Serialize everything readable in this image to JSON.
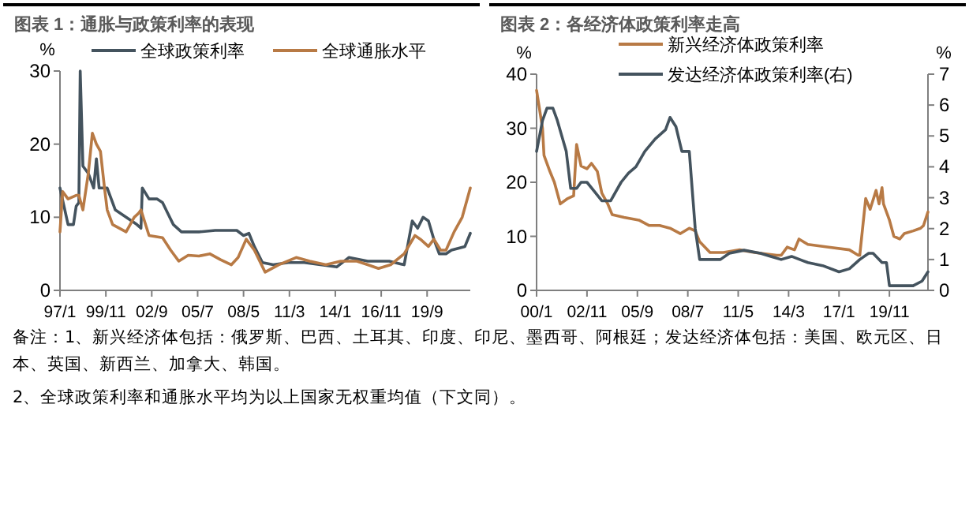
{
  "chart_data": [
    {
      "type": "line",
      "title": "图表 1：通胀与政策利率的表现",
      "ylabel": "%",
      "legend": "top",
      "grid": false,
      "xlim": [
        "1997-01",
        "2022-05"
      ],
      "ylim": [
        0,
        30
      ],
      "yticks": [
        0,
        10,
        20,
        30
      ],
      "xticks": [
        {
          "value": "1997-01",
          "label": "97/1"
        },
        {
          "value": "1999-11",
          "label": "99/11"
        },
        {
          "value": "2002-09",
          "label": "02/9"
        },
        {
          "value": "2005-07",
          "label": "05/7"
        },
        {
          "value": "2008-05",
          "label": "08/5"
        },
        {
          "value": "2011-03",
          "label": "11/3"
        },
        {
          "value": "2014-01",
          "label": "14/1"
        },
        {
          "value": "2016-11",
          "label": "16/11"
        },
        {
          "value": "2019-09",
          "label": "19/9"
        }
      ],
      "annotations": [
        "备注：1、新兴经济体包括：俄罗斯、巴西、土耳其、印度、印尼、墨西哥、阿根廷；发达经济体包括：美国、欧元区、日本、英国、新西兰、加拿大、韩国。",
        "2、全球政策利率和通胀水平均为以上国家无权重均值（下文同）。"
      ],
      "series": [
        {
          "name": "全球政策利率",
          "color": "#44535e",
          "x": [
            "1997-01",
            "1997-07",
            "1997-11",
            "1998-01",
            "1998-03",
            "1998-04",
            "1998-06",
            "1998-10",
            "1999-02",
            "1999-04",
            "1999-06",
            "1999-12",
            "2000-06",
            "2001-02",
            "2001-10",
            "2002-01",
            "2002-02",
            "2002-07",
            "2003-01",
            "2003-05",
            "2003-09",
            "2004-01",
            "2004-07",
            "2005-08",
            "2006-08",
            "2007-12",
            "2008-05",
            "2008-09",
            "2009-01",
            "2009-07",
            "2010-03",
            "2011-02",
            "2012-02",
            "2013-02",
            "2014-02",
            "2014-11",
            "2016-01",
            "2017-05",
            "2018-04",
            "2018-10",
            "2019-02",
            "2019-06",
            "2019-10",
            "2020-02",
            "2020-06",
            "2020-11",
            "2021-03",
            "2022-01",
            "2022-05"
          ],
          "values": [
            14,
            9,
            9,
            11.5,
            12,
            30,
            17,
            16,
            14,
            18,
            14,
            14,
            11,
            10,
            9,
            8.5,
            14,
            12.5,
            12.5,
            12,
            10.5,
            9,
            8,
            8,
            8.2,
            8.2,
            7.5,
            7.8,
            6,
            3.8,
            3.5,
            3.8,
            3.8,
            3.5,
            3.2,
            4.5,
            4,
            4,
            3.5,
            9.5,
            8.5,
            10,
            9.5,
            7,
            5,
            5,
            5.5,
            6,
            7.8
          ]
        },
        {
          "name": "全球通胀水平",
          "color": "#b87a45",
          "x": [
            "1997-01",
            "1997-03",
            "1997-07",
            "1998-01",
            "1998-03",
            "1998-06",
            "1998-10",
            "1999-01",
            "1999-04",
            "1999-07",
            "1999-10",
            "1999-12",
            "2000-04",
            "2001-02",
            "2001-08",
            "2001-11",
            "2002-01",
            "2002-07",
            "2003-05",
            "2003-11",
            "2004-05",
            "2004-12",
            "2005-08",
            "2006-04",
            "2006-12",
            "2007-08",
            "2008-01",
            "2008-07",
            "2009-01",
            "2009-09",
            "2010-07",
            "2011-08",
            "2012-06",
            "2013-06",
            "2014-05",
            "2015-05",
            "2016-01",
            "2016-09",
            "2017-06",
            "2018-04",
            "2018-12",
            "2019-04",
            "2019-10",
            "2020-02",
            "2020-07",
            "2020-11",
            "2021-05",
            "2021-11",
            "2022-05"
          ],
          "values": [
            8,
            13.5,
            12.5,
            13,
            13,
            11,
            16,
            21.5,
            20,
            19,
            14,
            11,
            9,
            8,
            10,
            10.5,
            11,
            7.5,
            7.2,
            5.5,
            4,
            4.8,
            4.7,
            5,
            4.2,
            3.5,
            4.5,
            7,
            5.5,
            2.5,
            3.5,
            4.5,
            4,
            3.5,
            4,
            4,
            3.5,
            3,
            3.5,
            5,
            7.5,
            7,
            6,
            7,
            5.5,
            5.5,
            8,
            10,
            14
          ]
        }
      ]
    },
    {
      "type": "line",
      "title": "图表 2：各经济体政策利率走高",
      "ylabel": "%",
      "y2label": "%",
      "legend": "top",
      "grid": false,
      "xlim": [
        "2000-01",
        "2022-01"
      ],
      "ylim": [
        0,
        40
      ],
      "yticks": [
        0,
        10,
        20,
        30,
        40
      ],
      "y2lim": [
        0,
        7
      ],
      "y2ticks": [
        0,
        1,
        2,
        3,
        4,
        5,
        6,
        7
      ],
      "xticks": [
        {
          "value": "2000-01",
          "label": "00/1"
        },
        {
          "value": "2002-11",
          "label": "02/11"
        },
        {
          "value": "2005-09",
          "label": "05/9"
        },
        {
          "value": "2008-07",
          "label": "08/7"
        },
        {
          "value": "2011-05",
          "label": "11/5"
        },
        {
          "value": "2014-03",
          "label": "14/3"
        },
        {
          "value": "2017-01",
          "label": "17/1"
        },
        {
          "value": "2019-11",
          "label": "19/11"
        }
      ],
      "series": [
        {
          "name": "新兴经济体政策利率",
          "color": "#b87a45",
          "x": [
            "2000-01",
            "2000-05",
            "2000-06",
            "2000-10",
            "2001-01",
            "2001-05",
            "2001-10",
            "2002-02",
            "2002-04",
            "2002-07",
            "2002-11",
            "2003-02",
            "2003-06",
            "2003-09",
            "2004-01",
            "2004-04",
            "2004-12",
            "2005-10",
            "2006-05",
            "2006-12",
            "2007-07",
            "2008-02",
            "2008-08",
            "2008-12",
            "2009-03",
            "2009-10",
            "2010-07",
            "2011-06",
            "2012-04",
            "2013-07",
            "2013-10",
            "2014-02",
            "2014-07",
            "2014-10",
            "2015-04",
            "2016-06",
            "2017-08",
            "2018-02",
            "2018-03",
            "2018-07",
            "2018-10",
            "2019-02",
            "2019-04",
            "2019-06",
            "2019-07",
            "2019-11",
            "2020-02",
            "2020-06",
            "2020-09",
            "2021-03",
            "2021-08",
            "2021-10",
            "2022-01"
          ],
          "values": [
            37,
            30,
            25,
            22,
            20,
            16,
            17,
            17.5,
            27,
            23,
            22.5,
            23.5,
            22,
            18,
            16,
            14,
            13.5,
            13,
            12,
            12,
            11.5,
            10.5,
            11.5,
            11,
            9,
            7,
            7,
            7.5,
            7,
            6.5,
            6.5,
            8,
            7.5,
            9.5,
            8.5,
            8,
            7.5,
            6.5,
            6.5,
            17,
            15,
            18.5,
            16,
            19,
            16,
            13,
            10,
            9.5,
            10.5,
            11,
            11.5,
            12,
            14.5
          ]
        },
        {
          "name": "发达经济体政策利率(右)",
          "color": "#44535e",
          "axis": "y2",
          "x": [
            "2000-01",
            "2000-05",
            "2000-08",
            "2000-12",
            "2001-03",
            "2001-09",
            "2001-12",
            "2002-04",
            "2002-07",
            "2002-11",
            "2003-04",
            "2003-09",
            "2004-03",
            "2004-10",
            "2005-03",
            "2005-08",
            "2006-02",
            "2006-09",
            "2007-04",
            "2007-07",
            "2007-11",
            "2008-03",
            "2008-08",
            "2008-12",
            "2009-03",
            "2010-05",
            "2010-11",
            "2011-09",
            "2012-08",
            "2013-03",
            "2013-10",
            "2014-05",
            "2015-04",
            "2016-02",
            "2017-01",
            "2017-08",
            "2018-03",
            "2018-09",
            "2018-12",
            "2019-06",
            "2019-09",
            "2019-11",
            "2021-03",
            "2021-09",
            "2022-01"
          ],
          "values": [
            4.5,
            5.5,
            5.9,
            5.9,
            5.5,
            4.5,
            3.3,
            3.3,
            3.5,
            3.5,
            3.2,
            2.9,
            2.9,
            3.5,
            3.8,
            4.0,
            4.5,
            4.9,
            5.2,
            5.6,
            5.3,
            4.5,
            4.5,
            2.0,
            1.0,
            1.0,
            1.2,
            1.3,
            1.2,
            1.1,
            1.0,
            1.1,
            0.9,
            0.8,
            0.6,
            0.7,
            1.0,
            1.2,
            1.2,
            0.9,
            0.9,
            0.15,
            0.15,
            0.3,
            0.6
          ]
        }
      ]
    }
  ]
}
